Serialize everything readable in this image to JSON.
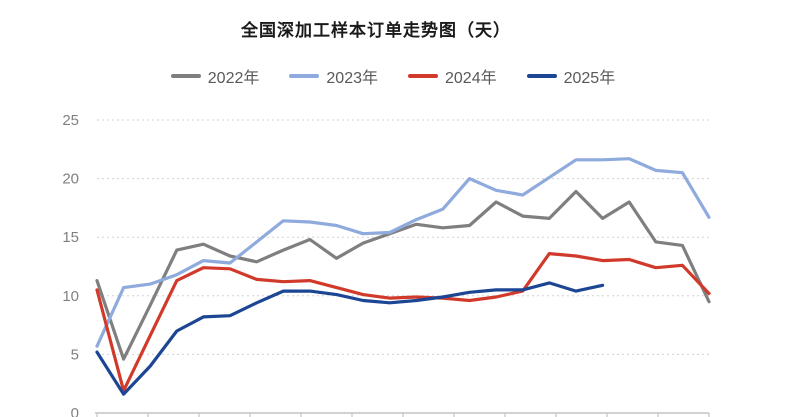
{
  "title": "全国深加工样本订单走势图（天）",
  "legend": {
    "items": [
      {
        "label": "2022年",
        "color": "#7F7F7F"
      },
      {
        "label": "2023年",
        "color": "#8FAADC"
      },
      {
        "label": "2024年",
        "color": "#D13A2B"
      },
      {
        "label": "2025年",
        "color": "#1C4693"
      }
    ]
  },
  "chart_data": {
    "type": "line",
    "title": "全国深加工样本订单走势图（天）",
    "subtitle": "",
    "x_index": [
      1,
      2,
      3,
      4,
      5,
      6,
      7,
      8,
      9,
      10,
      11,
      12,
      13,
      14,
      15,
      16,
      17,
      18,
      19,
      20,
      21,
      22,
      23,
      24
    ],
    "x_labels_visible": false,
    "x_tick_count": 13,
    "ylabel": "",
    "xlabel": "",
    "ylim": [
      0,
      25
    ],
    "yticks": [
      0,
      5,
      10,
      15,
      20,
      25
    ],
    "grid": "dotted-horizontal",
    "legend_position": "top",
    "series": [
      {
        "name": "2022年",
        "color": "#7F7F7F",
        "values": [
          11.3,
          4.6,
          9.2,
          13.9,
          14.4,
          13.4,
          12.9,
          13.9,
          14.8,
          13.2,
          14.5,
          15.3,
          16.1,
          15.8,
          16.0,
          18.0,
          16.8,
          16.6,
          18.9,
          16.6,
          18.0,
          14.6,
          14.3,
          9.5
        ]
      },
      {
        "name": "2023年",
        "color": "#8FAADC",
        "values": [
          5.7,
          10.7,
          11.0,
          11.8,
          13.0,
          12.8,
          14.6,
          16.4,
          16.3,
          16.0,
          15.3,
          15.4,
          16.5,
          17.4,
          20.0,
          19.0,
          18.6,
          20.1,
          21.6,
          21.6,
          21.7,
          20.7,
          20.5,
          16.7
        ]
      },
      {
        "name": "2024年",
        "color": "#D13A2B",
        "values": [
          10.5,
          1.9,
          6.6,
          11.3,
          12.4,
          12.3,
          11.4,
          11.2,
          11.3,
          10.7,
          10.1,
          9.8,
          9.9,
          9.8,
          9.6,
          9.9,
          10.4,
          13.6,
          13.4,
          13.0,
          13.1,
          12.4,
          12.6,
          10.2
        ]
      },
      {
        "name": "2025年",
        "color": "#1C4693",
        "values": [
          5.2,
          1.6,
          4.0,
          7.0,
          8.2,
          8.3,
          9.4,
          10.4,
          10.4,
          10.1,
          9.6,
          9.4,
          9.6,
          9.9,
          10.3,
          10.5,
          10.5,
          11.1,
          10.4,
          10.9,
          null,
          null,
          null,
          null
        ]
      }
    ]
  }
}
